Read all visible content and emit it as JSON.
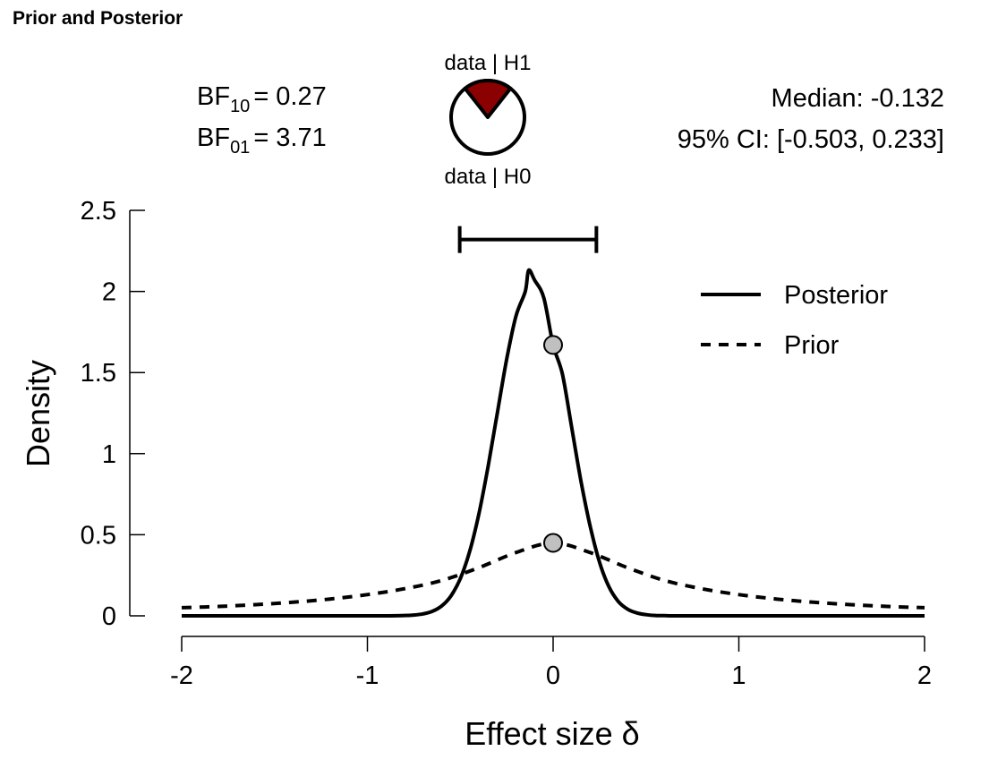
{
  "panel_title": "Prior and Posterior",
  "colors": {
    "pie_h1": "#8b0000",
    "pie_h0": "#ffffff",
    "point_fill": "#c0c0c0",
    "line": "#000000"
  },
  "bayes_factors": {
    "bf10_label": "BF",
    "bf10_sub": "10",
    "bf10_value": "= 0.27",
    "bf01_label": "BF",
    "bf01_sub": "01",
    "bf01_value": "= 3.71"
  },
  "pie": {
    "top_label": "data | H1",
    "bottom_label": "data | H0",
    "h1_fraction": 0.2126
  },
  "summary": {
    "median_text": "Median: -0.132",
    "ci_text": "95% CI: [-0.503, 0.233]"
  },
  "chart_data": {
    "type": "line",
    "xlabel": "Effect size δ",
    "ylabel": "Density",
    "xlim": [
      -2,
      2
    ],
    "ylim": [
      0,
      2.5
    ],
    "xticks": [
      -2,
      -1,
      0,
      1,
      2
    ],
    "xtick_labels": [
      "-2",
      "-1",
      "0",
      "1",
      "2"
    ],
    "yticks": [
      0,
      0.5,
      1,
      1.5,
      2,
      2.5
    ],
    "ytick_labels": [
      "0",
      "0.5",
      "1",
      "1.5",
      "2",
      "2.5"
    ],
    "legend": {
      "position": "top-right",
      "entries": [
        "Posterior",
        "Prior"
      ]
    },
    "credible_interval": {
      "lower": -0.503,
      "upper": 0.233,
      "y": 2.32
    },
    "series": [
      {
        "name": "Posterior",
        "style": "solid",
        "x": [
          -2.0,
          -1.0,
          -0.9,
          -0.8,
          -0.75,
          -0.7,
          -0.65,
          -0.6,
          -0.55,
          -0.5,
          -0.45,
          -0.4,
          -0.35,
          -0.3,
          -0.25,
          -0.2,
          -0.15,
          -0.132,
          -0.1,
          -0.05,
          0.0,
          0.05,
          0.1,
          0.15,
          0.2,
          0.25,
          0.3,
          0.35,
          0.4,
          0.45,
          0.5,
          0.55,
          0.6,
          0.7,
          1.0,
          2.0
        ],
        "y": [
          0,
          0,
          0,
          0.002,
          0.005,
          0.012,
          0.028,
          0.061,
          0.123,
          0.229,
          0.394,
          0.627,
          0.922,
          1.255,
          1.582,
          1.848,
          2.0,
          2.13,
          2.07,
          1.96,
          1.67,
          1.49,
          1.16,
          0.83,
          0.55,
          0.33,
          0.18,
          0.09,
          0.042,
          0.018,
          0.007,
          0.002,
          0.001,
          0,
          0,
          0
        ]
      },
      {
        "name": "Prior",
        "style": "dashed",
        "x": [
          -2.0,
          -1.8,
          -1.6,
          -1.4,
          -1.2,
          -1.0,
          -0.8,
          -0.6,
          -0.4,
          -0.2,
          0.0,
          0.2,
          0.4,
          0.6,
          0.8,
          1.0,
          1.2,
          1.4,
          1.6,
          1.8,
          2.0
        ],
        "y": [
          0.05,
          0.058,
          0.069,
          0.084,
          0.104,
          0.131,
          0.167,
          0.218,
          0.297,
          0.39,
          0.45,
          0.39,
          0.297,
          0.218,
          0.167,
          0.131,
          0.104,
          0.084,
          0.069,
          0.058,
          0.05
        ]
      }
    ],
    "points": [
      {
        "x": 0,
        "y": 1.67
      },
      {
        "x": 0,
        "y": 0.45
      }
    ]
  }
}
